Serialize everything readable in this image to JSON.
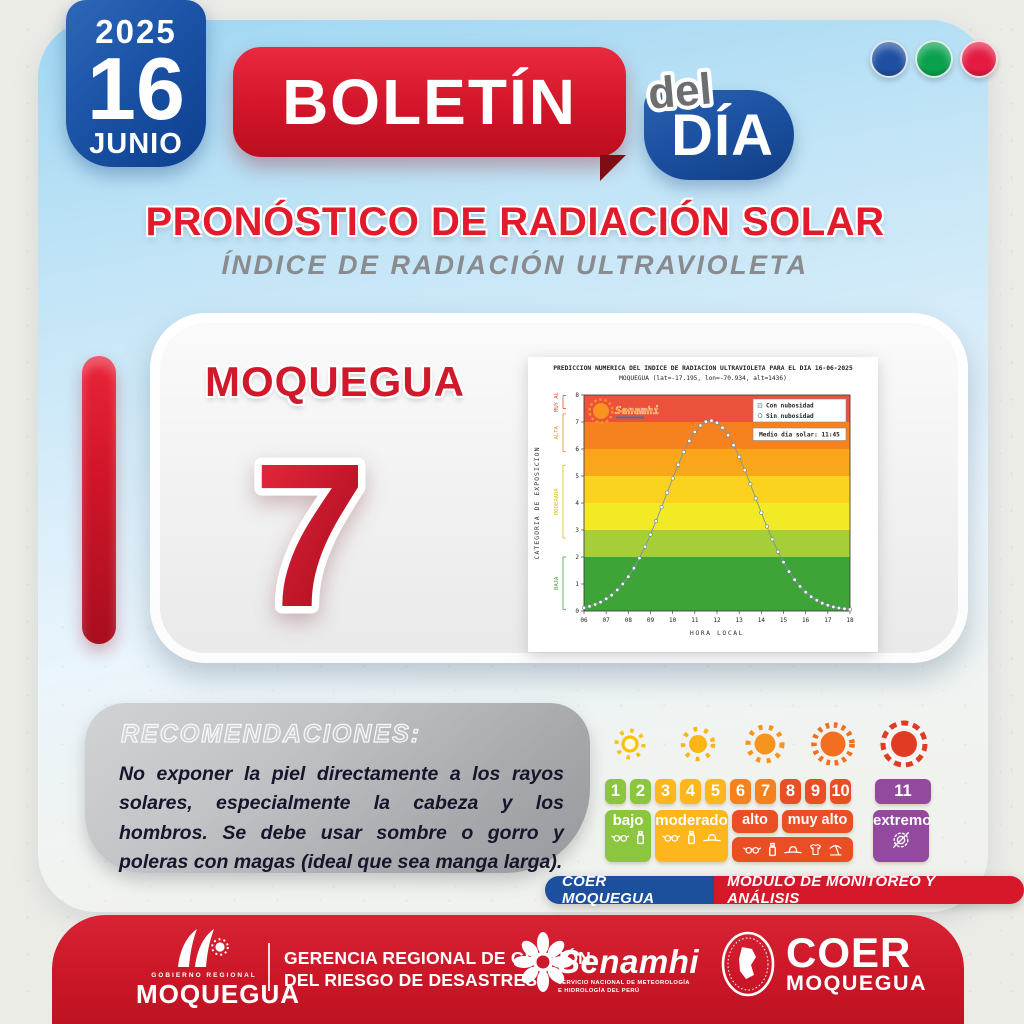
{
  "date": {
    "year": "2025",
    "day": "16",
    "month": "JUNIO"
  },
  "brand": {
    "boletin": "BOLETÍN",
    "del": "del",
    "dia": "DÍA"
  },
  "window_dots": [
    "#1E4FA1",
    "#0AA14E",
    "#E51A42"
  ],
  "heading": {
    "title": "PRONÓSTICO DE RADIACIÓN SOLAR",
    "subtitle": "ÍNDICE DE RADIACIÓN ULTRAVIOLETA"
  },
  "panel": {
    "city": "MOQUEGUA",
    "uv_value": "7"
  },
  "chart_data": {
    "type": "line",
    "title": "PREDICCION NUMERICA DEL INDICE DE RADIACION ULTRAVIOLETA PARA EL DIA 16-06-2025",
    "subtitle": "MOQUEGUA (lat=-17.195, lon=-70.934, alt=1436)",
    "xlabel": "HORA LOCAL",
    "ylabel": "CATEGORIA DE EXPOSICION",
    "xlim": [
      6,
      18
    ],
    "ylim": [
      0,
      8
    ],
    "xticks": [
      "06",
      "07",
      "08",
      "09",
      "10",
      "11",
      "12",
      "13",
      "14",
      "15",
      "16",
      "17",
      "18"
    ],
    "yticks": [
      0,
      1,
      2,
      3,
      4,
      5,
      6,
      7,
      8
    ],
    "grid": false,
    "legend_position": "top-right",
    "legend": [
      "Con nubosidad",
      "Sin nubosidad"
    ],
    "annotation": "Medio dia solar: 11:45",
    "watermark": "Senamhi",
    "bands": [
      {
        "from": 0,
        "to": 2,
        "color": "#3EA437"
      },
      {
        "from": 2,
        "to": 3,
        "color": "#A6CE39"
      },
      {
        "from": 3,
        "to": 4,
        "color": "#F3EA26"
      },
      {
        "from": 4,
        "to": 5,
        "color": "#FBD31F"
      },
      {
        "from": 5,
        "to": 6,
        "color": "#FAA61B"
      },
      {
        "from": 6,
        "to": 7,
        "color": "#F5821F"
      },
      {
        "from": 7,
        "to": 8,
        "color": "#EB513B"
      }
    ],
    "category_brackets": [
      {
        "label": "BAJA",
        "from": 0.05,
        "to": 2.0,
        "color": "#3EA437"
      },
      {
        "label": "MODERADA",
        "from": 2.7,
        "to": 5.4,
        "color": "#D9BC1A"
      },
      {
        "label": "ALTA",
        "from": 5.9,
        "to": 7.3,
        "color": "#F08A1D"
      },
      {
        "label": "MUY AL",
        "from": 7.5,
        "to": 7.98,
        "color": "#E0482F"
      }
    ],
    "series": [
      {
        "name": "Sin nubosidad",
        "peak": 7.05,
        "peak_hour": 11.75,
        "points": [
          [
            6,
            0.12
          ],
          [
            6.25,
            0.17
          ],
          [
            6.5,
            0.24
          ],
          [
            6.75,
            0.33
          ],
          [
            7,
            0.45
          ],
          [
            7.25,
            0.59
          ],
          [
            7.5,
            0.78
          ],
          [
            7.75,
            1.0
          ],
          [
            8,
            1.27
          ],
          [
            8.25,
            1.59
          ],
          [
            8.5,
            1.96
          ],
          [
            8.75,
            2.38
          ],
          [
            9,
            2.83
          ],
          [
            9.25,
            3.33
          ],
          [
            9.5,
            3.85
          ],
          [
            9.75,
            4.38
          ],
          [
            10,
            4.91
          ],
          [
            10.25,
            5.42
          ],
          [
            10.5,
            5.89
          ],
          [
            10.75,
            6.3
          ],
          [
            11,
            6.63
          ],
          [
            11.25,
            6.87
          ],
          [
            11.5,
            7.01
          ],
          [
            11.75,
            7.05
          ],
          [
            12,
            6.97
          ],
          [
            12.25,
            6.79
          ],
          [
            12.5,
            6.51
          ],
          [
            12.75,
            6.14
          ],
          [
            13,
            5.71
          ],
          [
            13.25,
            5.22
          ],
          [
            13.5,
            4.7
          ],
          [
            13.75,
            4.17
          ],
          [
            14,
            3.64
          ],
          [
            14.25,
            3.13
          ],
          [
            14.5,
            2.65
          ],
          [
            14.75,
            2.2
          ],
          [
            15,
            1.81
          ],
          [
            15.25,
            1.46
          ],
          [
            15.5,
            1.16
          ],
          [
            15.75,
            0.91
          ],
          [
            16,
            0.7
          ],
          [
            16.25,
            0.53
          ],
          [
            16.5,
            0.4
          ],
          [
            16.75,
            0.29
          ],
          [
            17,
            0.21
          ],
          [
            17.25,
            0.15
          ],
          [
            17.5,
            0.11
          ],
          [
            17.75,
            0.08
          ],
          [
            18,
            0.06
          ]
        ]
      }
    ]
  },
  "recommendations": {
    "title": "RECOMENDACIONES:",
    "body": "No exponer la piel directamente a los rayos solares, especialmente la cabeza y los hombros. Se debe usar sombre o gorro y poleras con magas (ideal que sea manga larga)."
  },
  "uv_scale": {
    "cells": [
      {
        "n": "1",
        "color": "#8CC63F"
      },
      {
        "n": "2",
        "color": "#8CC63F"
      },
      {
        "n": "3",
        "color": "#FDB61B"
      },
      {
        "n": "4",
        "color": "#FDB61B"
      },
      {
        "n": "5",
        "color": "#FDB61B"
      },
      {
        "n": "6",
        "color": "#F5821F"
      },
      {
        "n": "7",
        "color": "#F5821F"
      },
      {
        "n": "8",
        "color": "#E94E24"
      },
      {
        "n": "9",
        "color": "#E94E24"
      },
      {
        "n": "10",
        "color": "#E94E24"
      },
      {
        "n": "11",
        "color": "#92499E",
        "wide": true,
        "gap_before": true
      }
    ],
    "labels": [
      {
        "text": "bajo",
        "color": "#8CC63F"
      },
      {
        "text": "moderado",
        "color": "#FDB61B"
      },
      {
        "text": "alto",
        "color": "#E94E24"
      },
      {
        "text": "muy alto",
        "color": "#E94E24"
      },
      {
        "text": "extremo",
        "color": "#92499E"
      }
    ]
  },
  "ribbon": {
    "left": "COER MOQUEGUA",
    "right": "MÓDULO DE MONITOREO Y ANÁLISIS"
  },
  "footer": {
    "gov_small": "GOBIERNO REGIONAL",
    "gov_big": "MOQUEGUA",
    "gerencia_line1": "GERENCIA REGIONAL DE GESTIÓN",
    "gerencia_line2": "DEL RIESGO DE DESASTRES",
    "senamhi": "Senamhi",
    "senamhi_sub1": "SERVICIO NACIONAL DE METEOROLOGÍA",
    "senamhi_sub2": "E HIDROLOGÍA DEL PERÚ",
    "coer": "COER",
    "coer_sub": "MOQUEGUA"
  },
  "colors": {
    "primary_red": "#D6182B",
    "primary_blue": "#1C4F9C",
    "sky_blue": "#A9DCF5",
    "uv_green": "#8CC63F",
    "uv_amber": "#FDB61B",
    "uv_orange": "#F5821F",
    "uv_red_orange": "#E94E24",
    "uv_purple": "#92499E"
  }
}
